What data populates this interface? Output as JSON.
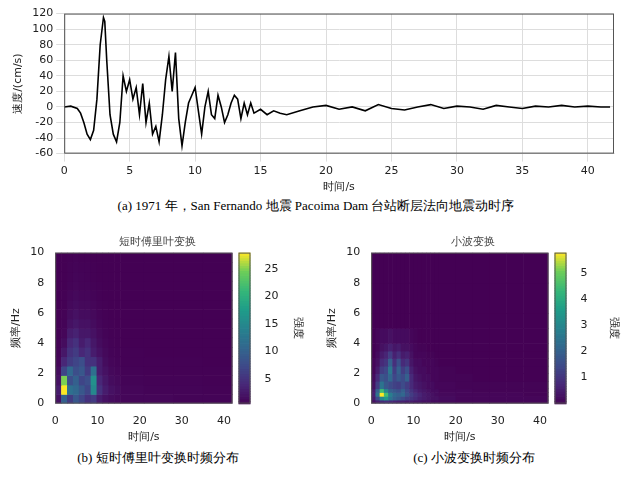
{
  "chart_data": [
    {
      "type": "line",
      "caption": "(a) 1971 年，San Fernando 地震 Pacoima Dam 台站断层法向地震动时序",
      "x_label": "时间/s",
      "y_label": "速度/(cm/s)",
      "xlim": [
        0,
        42
      ],
      "xticks": [
        0,
        5,
        10,
        15,
        20,
        25,
        30,
        35,
        40
      ],
      "ylim": [
        -60,
        120
      ],
      "yticks": [
        -60,
        -40,
        -20,
        0,
        20,
        40,
        60,
        80,
        100,
        120
      ],
      "grid": true,
      "color": "#000000",
      "x": [
        0,
        0.5,
        1,
        1.25,
        1.5,
        1.75,
        2.0,
        2.25,
        2.5,
        2.75,
        3.0,
        3.1,
        3.25,
        3.5,
        3.75,
        4.0,
        4.25,
        4.5,
        4.75,
        5.0,
        5.25,
        5.5,
        5.75,
        6.0,
        6.25,
        6.5,
        6.75,
        7.0,
        7.25,
        7.5,
        7.75,
        8.0,
        8.25,
        8.5,
        8.75,
        9.0,
        9.25,
        9.5,
        9.75,
        10.0,
        10.25,
        10.5,
        10.75,
        11,
        11.25,
        11.5,
        11.75,
        12,
        12.25,
        12.5,
        12.75,
        13,
        13.25,
        13.5,
        13.75,
        14,
        14.25,
        14.5,
        15,
        15.5,
        16,
        16.5,
        17,
        18,
        19,
        20,
        21,
        22,
        23,
        24,
        25,
        26,
        27,
        28,
        29,
        30,
        31,
        32,
        33,
        34,
        35,
        36,
        37,
        38,
        39,
        40,
        41,
        41.7
      ],
      "values": [
        0,
        1,
        -2,
        -8,
        -20,
        -35,
        -42,
        -30,
        10,
        80,
        115,
        110,
        60,
        -10,
        -35,
        -45,
        -20,
        40,
        20,
        35,
        10,
        25,
        -10,
        30,
        -20,
        5,
        -35,
        -25,
        -45,
        -10,
        35,
        65,
        20,
        70,
        -15,
        -50,
        -20,
        5,
        15,
        25,
        -5,
        -35,
        0,
        20,
        -10,
        -15,
        15,
        0,
        -20,
        -10,
        5,
        15,
        10,
        -15,
        5,
        -10,
        5,
        -8,
        -3,
        -10,
        -5,
        -8,
        -10,
        -5,
        0,
        2,
        -3,
        0,
        -5,
        3,
        -2,
        -4,
        0,
        3,
        -2,
        1,
        0,
        -3,
        2,
        0,
        -2,
        1,
        0,
        2,
        0,
        1,
        0,
        0
      ]
    },
    {
      "type": "heatmap",
      "title": "短时傅里叶变换",
      "caption": "(b) 短时傅里叶变换时频分布",
      "x_label": "时间/s",
      "y_label": "频率/Hz",
      "xlim": [
        0,
        42
      ],
      "xticks": [
        0,
        10,
        20,
        30,
        40
      ],
      "ylim": [
        0,
        10
      ],
      "yticks": [
        0,
        2,
        4,
        6,
        8,
        10
      ],
      "grid": false,
      "x_edges": [
        0,
        1.4,
        2.8,
        4.2,
        5.6,
        7,
        8.4,
        9.8,
        11.2,
        12.6,
        14,
        15.4,
        21,
        28,
        35,
        42
      ],
      "y_edges": [
        0,
        0.625,
        1.25,
        1.875,
        2.5,
        3.125,
        3.75,
        4.375,
        5,
        5.625,
        6.25,
        6.875,
        7.5,
        8.125,
        8.75,
        9.375,
        10
      ],
      "cells": [
        [
          2,
          10,
          6,
          9,
          7,
          5,
          6,
          3,
          2,
          1.5,
          1.2,
          1,
          1,
          0.8,
          0.8
        ],
        [
          3,
          28,
          12,
          11,
          9,
          7,
          15,
          5,
          3,
          2,
          1.5,
          1,
          0.8,
          0.8,
          0.7
        ],
        [
          2,
          25,
          8,
          10,
          7,
          8,
          16,
          4,
          2.5,
          1.5,
          1.2,
          0.8,
          0.7,
          0.7,
          0.6
        ],
        [
          1.5,
          7,
          11,
          8,
          9,
          6,
          12,
          3,
          2,
          1.2,
          1,
          0.7,
          0.6,
          0.6,
          0.6
        ],
        [
          1,
          4,
          6,
          7,
          8,
          5,
          5,
          3,
          1.5,
          1,
          0.8,
          0.6,
          0.6,
          0.6,
          0.5
        ],
        [
          0.8,
          2.5,
          5,
          6,
          4,
          5,
          3,
          2,
          1.2,
          0.8,
          0.7,
          0.6,
          0.5,
          0.5,
          0.5
        ],
        [
          0.7,
          1.5,
          4,
          5,
          3,
          4,
          2.5,
          1.5,
          1,
          0.7,
          0.6,
          0.5,
          0.5,
          0.5,
          0.5
        ],
        [
          0.6,
          1,
          3,
          3.5,
          2.5,
          2.5,
          2,
          1.2,
          0.8,
          0.6,
          0.6,
          0.5,
          0.5,
          0.5,
          0.5
        ],
        [
          0.6,
          0.8,
          2,
          2.5,
          2,
          2,
          1.5,
          1,
          0.7,
          0.6,
          0.5,
          0.5,
          0.5,
          0.5,
          0.5
        ],
        [
          0.5,
          0.7,
          1.5,
          2,
          1.5,
          1.5,
          1.2,
          0.8,
          0.6,
          0.5,
          0.5,
          0.5,
          0.5,
          0.5,
          0.5
        ],
        [
          0.5,
          0.6,
          1.2,
          1.5,
          1.2,
          1.2,
          1,
          0.7,
          0.6,
          0.5,
          0.5,
          0.5,
          0.5,
          0.5,
          0.5
        ],
        [
          0.5,
          0.6,
          1,
          1.2,
          1,
          1,
          0.8,
          0.6,
          0.5,
          0.5,
          0.5,
          0.5,
          0.5,
          0.5,
          0.5
        ],
        [
          0.5,
          0.5,
          0.8,
          1,
          0.8,
          0.8,
          0.7,
          0.6,
          0.5,
          0.5,
          0.5,
          0.5,
          0.5,
          0.5,
          0.5
        ],
        [
          0.5,
          0.5,
          0.7,
          0.9,
          0.8,
          0.7,
          0.6,
          0.5,
          0.5,
          0.5,
          0.5,
          0.5,
          0.5,
          0.5,
          0.5
        ],
        [
          0.5,
          0.5,
          0.7,
          0.8,
          0.7,
          0.7,
          0.6,
          0.5,
          0.5,
          0.5,
          0.5,
          0.5,
          0.5,
          0.5,
          0.5
        ],
        [
          0.5,
          0.5,
          0.6,
          0.7,
          0.6,
          0.6,
          0.5,
          0.5,
          0.5,
          0.5,
          0.5,
          0.5,
          0.5,
          0.5,
          0.5
        ]
      ],
      "colorbar": {
        "label": "强度",
        "range": [
          0.5,
          28
        ],
        "ticks": [
          5,
          10,
          15,
          20,
          25
        ]
      }
    },
    {
      "type": "heatmap",
      "title": "小波变换",
      "caption": "(c) 小波变换时频分布",
      "x_label": "时间/s",
      "y_label": "频率/Hz",
      "xlim": [
        0,
        42
      ],
      "xticks": [
        0,
        10,
        20,
        30,
        40
      ],
      "ylim": [
        0,
        10
      ],
      "yticks": [
        0,
        2,
        4,
        6,
        8,
        10
      ],
      "grid": false,
      "x_edges": [
        0,
        1,
        2,
        3,
        4,
        5,
        6,
        7,
        8,
        9,
        10,
        11,
        12,
        13,
        14,
        15,
        16,
        20,
        24,
        28,
        32,
        36,
        42
      ],
      "y_edges": [
        0,
        0.25,
        0.5,
        0.75,
        1,
        1.5,
        2,
        2.5,
        3,
        3.5,
        4,
        5,
        6,
        8,
        10
      ],
      "cells": [
        [
          0.3,
          0.6,
          0.8,
          0.9,
          0.8,
          0.7,
          0.6,
          0.6,
          0.5,
          0.5,
          0.4,
          0.4,
          0.3,
          0.3,
          0.2,
          0.2,
          0.15,
          0.1,
          0.1,
          0.1,
          0.1,
          0.1
        ],
        [
          0.5,
          1.5,
          3,
          3.5,
          2.5,
          2,
          1.8,
          1.5,
          1.2,
          1,
          0.8,
          0.6,
          0.5,
          0.4,
          0.3,
          0.3,
          0.2,
          0.1,
          0.1,
          0.1,
          0.1,
          0.1
        ],
        [
          0.6,
          2.5,
          5.8,
          4.5,
          2.8,
          2.2,
          2,
          2.2,
          1.6,
          1.2,
          0.9,
          0.7,
          0.5,
          0.4,
          0.3,
          0.2,
          0.15,
          0.1,
          0.1,
          0.1,
          0.1,
          0.05
        ],
        [
          0.5,
          2,
          4.5,
          3,
          2,
          1.8,
          1.6,
          2,
          1.4,
          1,
          0.7,
          0.5,
          0.4,
          0.3,
          0.2,
          0.2,
          0.1,
          0.1,
          0.05,
          0.05,
          0.05,
          0.05
        ],
        [
          0.3,
          1.2,
          2.5,
          1.8,
          1.5,
          1.3,
          1.2,
          1.5,
          1.2,
          0.8,
          0.5,
          0.4,
          0.3,
          0.2,
          0.2,
          0.1,
          0.1,
          0.05,
          0.05,
          0.05,
          0.05,
          0.05
        ],
        [
          0.2,
          0.8,
          1.8,
          1.6,
          2.2,
          1.4,
          1.8,
          1.5,
          2,
          0.8,
          0.4,
          0.3,
          0.2,
          0.2,
          0.1,
          0.1,
          0.05,
          0.05,
          0,
          0,
          0,
          0
        ],
        [
          0.1,
          0.5,
          1.2,
          1.4,
          2.6,
          1.2,
          2,
          1.2,
          1.6,
          0.6,
          0.3,
          0.2,
          0.2,
          0.1,
          0.1,
          0.1,
          0.05,
          0,
          0,
          0,
          0,
          0
        ],
        [
          0.1,
          0.3,
          0.8,
          1,
          2,
          0.9,
          1.6,
          0.8,
          1,
          0.4,
          0.2,
          0.2,
          0.1,
          0.1,
          0.1,
          0.05,
          0,
          0,
          0,
          0,
          0,
          0
        ],
        [
          0,
          0.2,
          0.5,
          0.7,
          1.2,
          0.6,
          0.9,
          0.5,
          0.6,
          0.3,
          0.1,
          0.1,
          0.1,
          0.05,
          0.05,
          0,
          0,
          0,
          0,
          0,
          0,
          0
        ],
        [
          0,
          0.1,
          0.3,
          0.4,
          0.6,
          0.4,
          0.5,
          0.3,
          0.3,
          0.2,
          0.1,
          0.05,
          0.05,
          0,
          0,
          0,
          0,
          0,
          0,
          0,
          0,
          0
        ],
        [
          0,
          0.1,
          0.2,
          0.2,
          0.3,
          0.2,
          0.2,
          0.2,
          0.2,
          0.1,
          0.05,
          0,
          0,
          0,
          0,
          0,
          0,
          0,
          0,
          0,
          0,
          0
        ],
        [
          0,
          0,
          0,
          0,
          0,
          0,
          0,
          0,
          0,
          0,
          0,
          0,
          0,
          0,
          0,
          0,
          0,
          0,
          0,
          0,
          0,
          0
        ],
        [
          0,
          0,
          0,
          0,
          0,
          0,
          0,
          0,
          0,
          0,
          0,
          0,
          0,
          0,
          0,
          0,
          0,
          0,
          0,
          0,
          0,
          0
        ],
        [
          0,
          0,
          0,
          0,
          0,
          0,
          0,
          0,
          0,
          0,
          0,
          0,
          0,
          0,
          0,
          0,
          0,
          0,
          0,
          0,
          0,
          0
        ]
      ],
      "colorbar": {
        "label": "强度",
        "range": [
          0,
          5.8
        ],
        "ticks": [
          1,
          2,
          3,
          4,
          5
        ]
      }
    }
  ]
}
